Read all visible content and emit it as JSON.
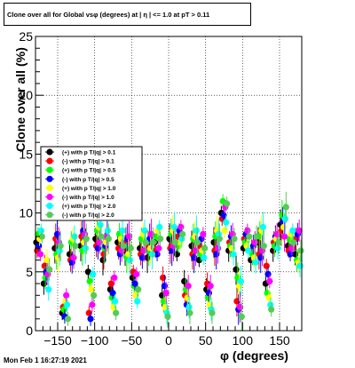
{
  "title": "Clone  over all for Global vsφ (degrees) at | η | <= 1.0 at pT > 0.11",
  "timestamp": "Mon Feb  1 16:27:19 2021",
  "chart_data": {
    "type": "scatter",
    "xlabel": "φ (degrees)",
    "ylabel": "Clone  over all (%)",
    "xlim": [
      -180,
      180
    ],
    "ylim": [
      0,
      25
    ],
    "x_ticks": [
      -150,
      -100,
      -50,
      0,
      50,
      100,
      150
    ],
    "x_tick_labels": [
      "−150",
      "−100",
      "−50",
      "0",
      "50",
      "100",
      "150"
    ],
    "y_ticks": [
      0,
      5,
      10,
      15,
      20,
      25
    ],
    "y_tick_labels": [
      "0",
      "5",
      "10",
      "15",
      "20",
      "25"
    ],
    "grid": true,
    "legend_position": "left-middle",
    "series": [
      {
        "name": "(+) with p T/|q| > 0.1",
        "color": "#000000",
        "x": [
          -175,
          -165,
          -150,
          -140,
          -130,
          -115,
          -105,
          -95,
          -85,
          -75,
          -65,
          -55,
          -45,
          -35,
          -25,
          -15,
          -5,
          5,
          15,
          25,
          35,
          45,
          55,
          65,
          75,
          85,
          95,
          105,
          115,
          125,
          135,
          145,
          155,
          165,
          175
        ],
        "y": [
          7.5,
          4.0,
          7.0,
          1.5,
          6.5,
          7.2,
          5.0,
          7.8,
          6.0,
          3.5,
          7.5,
          6.8,
          4.5,
          7.0,
          6.2,
          7.5,
          3.0,
          7.8,
          6.5,
          4.2,
          7.2,
          6.0,
          3.5,
          7.5,
          10.0,
          6.8,
          5.2,
          7.0,
          6.0,
          7.5,
          4.0,
          6.8,
          9.0,
          7.2,
          6.5
        ]
      },
      {
        "name": "(-) with p T/|q| > 0.1",
        "color": "#ff0000",
        "x": [
          -175,
          -165,
          -150,
          -140,
          -130,
          -115,
          -105,
          -95,
          -85,
          -75,
          -65,
          -55,
          -45,
          -35,
          -25,
          -15,
          -5,
          5,
          15,
          25,
          35,
          45,
          55,
          65,
          75,
          85,
          95,
          105,
          115,
          125,
          135,
          145,
          155,
          165,
          175
        ],
        "y": [
          6.8,
          5.5,
          7.8,
          2.0,
          6.0,
          8.0,
          1.5,
          7.2,
          6.5,
          4.0,
          7.0,
          7.5,
          5.0,
          6.5,
          7.2,
          6.8,
          4.5,
          7.0,
          8.0,
          3.0,
          6.5,
          7.2,
          4.0,
          6.8,
          9.5,
          7.5,
          2.5,
          7.8,
          6.8,
          6.5,
          5.5,
          7.5,
          8.5,
          6.8,
          7.8
        ]
      },
      {
        "name": "(+) with p T/|q| > 0.5",
        "color": "#00ff00",
        "x": [
          -175,
          -165,
          -150,
          -140,
          -130,
          -115,
          -105,
          -95,
          -85,
          -75,
          -65,
          -55,
          -45,
          -35,
          -25,
          -15,
          -5,
          5,
          15,
          25,
          35,
          45,
          55,
          65,
          75,
          85,
          95,
          105,
          115,
          125,
          135,
          145,
          155,
          165,
          175
        ],
        "y": [
          8.2,
          4.5,
          6.5,
          1.8,
          7.5,
          6.8,
          4.2,
          8.5,
          7.0,
          2.8,
          8.2,
          6.2,
          3.8,
          7.8,
          6.8,
          8.0,
          2.5,
          8.2,
          7.2,
          3.5,
          7.8,
          6.5,
          2.8,
          8.0,
          11.0,
          7.2,
          4.5,
          7.5,
          6.5,
          8.0,
          3.2,
          7.2,
          9.8,
          7.8,
          6.0
        ]
      },
      {
        "name": "(-) with p T/|q| > 0.5",
        "color": "#0000ff",
        "x": [
          -175,
          -165,
          -150,
          -140,
          -130,
          -115,
          -105,
          -95,
          -85,
          -75,
          -65,
          -55,
          -45,
          -35,
          -25,
          -15,
          -5,
          5,
          15,
          25,
          35,
          45,
          55,
          65,
          75,
          85,
          95,
          105,
          115,
          125,
          135,
          145,
          155,
          165,
          175
        ],
        "y": [
          7.2,
          5.0,
          8.2,
          1.2,
          5.8,
          8.5,
          1.0,
          7.0,
          7.2,
          3.2,
          6.5,
          7.8,
          4.0,
          6.2,
          7.8,
          6.5,
          3.8,
          6.8,
          8.5,
          2.2,
          6.2,
          7.8,
          3.2,
          6.5,
          9.8,
          8.0,
          1.8,
          8.2,
          7.2,
          6.2,
          4.8,
          8.0,
          9.2,
          6.5,
          8.2
        ]
      },
      {
        "name": "(+) with p T/|q| > 1.0",
        "color": "#ffff00",
        "x": [
          -175,
          -165,
          -150,
          -140,
          -130,
          -115,
          -105,
          -95,
          -85,
          -75,
          -65,
          -55,
          -45,
          -35,
          -25,
          -15,
          -5,
          5,
          15,
          25,
          35,
          45,
          55,
          65,
          75,
          85,
          95,
          105,
          115,
          125,
          135,
          145,
          155,
          165,
          175
        ],
        "y": [
          7.8,
          6.0,
          6.2,
          2.5,
          7.8,
          7.5,
          3.5,
          8.8,
          7.5,
          2.0,
          7.8,
          6.5,
          3.0,
          8.2,
          7.0,
          8.5,
          2.0,
          8.5,
          7.5,
          2.8,
          8.0,
          6.8,
          2.2,
          8.5,
          8.5,
          7.0,
          3.8,
          7.2,
          6.2,
          8.5,
          2.8,
          7.8,
          8.8,
          8.2,
          5.8
        ]
      },
      {
        "name": "(-) with p T/|q| > 1.0",
        "color": "#ff00ff",
        "x": [
          -175,
          -165,
          -150,
          -140,
          -130,
          -115,
          -105,
          -95,
          -85,
          -75,
          -65,
          -55,
          -45,
          -35,
          -25,
          -15,
          -5,
          5,
          15,
          25,
          35,
          45,
          55,
          65,
          75,
          85,
          95,
          105,
          115,
          125,
          135,
          145,
          155,
          165,
          175
        ],
        "y": [
          6.5,
          4.8,
          7.5,
          3.0,
          6.2,
          8.2,
          2.2,
          7.5,
          8.0,
          4.5,
          6.8,
          8.0,
          4.8,
          6.8,
          8.2,
          7.0,
          3.2,
          7.2,
          8.8,
          3.8,
          6.8,
          8.2,
          3.8,
          7.0,
          10.5,
          8.2,
          2.0,
          8.5,
          7.5,
          6.8,
          4.2,
          8.2,
          8.0,
          7.0,
          8.5
        ]
      },
      {
        "name": "(+) with p T/|q| > 2.0",
        "color": "#00ffff",
        "x": [
          -175,
          -165,
          -150,
          -140,
          -130,
          -115,
          -105,
          -95,
          -85,
          -75,
          -65,
          -55,
          -45,
          -35,
          -25,
          -15,
          -5,
          5,
          15,
          25,
          35,
          45,
          55,
          65,
          75,
          85,
          95,
          105,
          115,
          125,
          135,
          145,
          155,
          165,
          175
        ],
        "y": [
          8.5,
          3.5,
          6.8,
          2.2,
          8.0,
          7.0,
          4.8,
          9.0,
          8.5,
          2.5,
          8.5,
          6.0,
          2.5,
          8.5,
          6.5,
          8.8,
          1.5,
          8.8,
          7.8,
          2.0,
          8.5,
          6.2,
          1.8,
          8.2,
          9.2,
          6.5,
          4.2,
          6.8,
          5.8,
          8.8,
          2.2,
          7.0,
          9.5,
          8.5,
          5.5
        ]
      },
      {
        "name": "(-) with p T/|q| > 2.0",
        "color": "#55cc55",
        "x": [
          -175,
          -165,
          -150,
          -140,
          -130,
          -115,
          -105,
          -95,
          -85,
          -75,
          -65,
          -55,
          -45,
          -35,
          -25,
          -15,
          -5,
          5,
          15,
          25,
          35,
          45,
          55,
          65,
          75,
          85,
          95,
          105,
          115,
          125,
          135,
          145,
          155,
          165,
          175
        ],
        "y": [
          8.0,
          5.2,
          7.2,
          1.0,
          7.2,
          7.8,
          3.0,
          8.0,
          7.8,
          1.5,
          7.2,
          7.0,
          3.5,
          7.5,
          7.5,
          7.8,
          1.2,
          7.5,
          8.2,
          1.5,
          7.5,
          7.0,
          1.5,
          7.8,
          10.8,
          7.8,
          1.2,
          8.0,
          8.0,
          7.2,
          1.8,
          7.5,
          10.5,
          7.5,
          6.8
        ]
      }
    ]
  }
}
